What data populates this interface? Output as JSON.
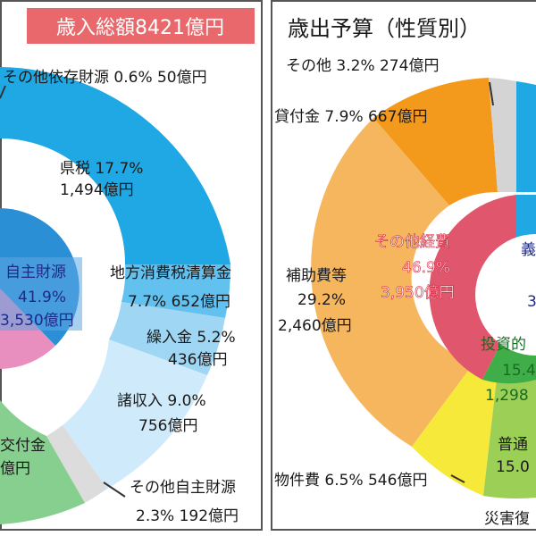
{
  "chart_data": [
    {
      "type": "pie",
      "title": "歳入総額8421億円",
      "outer_ring": [
        {
          "label": "その他依存財源",
          "percent": 0.6,
          "amount": "50億円",
          "color": "#f3e6ef"
        },
        {
          "label": "県税",
          "percent": 17.7,
          "amount": "1,494億円",
          "color": "#1fa8e3"
        },
        {
          "label": "地方消費税清算金",
          "percent": 7.7,
          "amount": "652億円",
          "color": "#62c1ee"
        },
        {
          "label": "繰入金",
          "percent": 5.2,
          "amount": "436億円",
          "color": "#9ed6f4"
        },
        {
          "label": "諸収入",
          "percent": 9.0,
          "amount": "756億円",
          "color": "#cfeafa"
        },
        {
          "label": "その他自主財源",
          "percent": 2.3,
          "amount": "192億円",
          "color": "#dcdcdc"
        },
        {
          "label": "交付金",
          "percent": null,
          "amount": "億円",
          "color": "#86cf8f"
        }
      ],
      "inner_ring": [
        {
          "label": "自主財源",
          "percent": 41.9,
          "amount": "3,530億円",
          "color": "#2b8fd6"
        },
        {
          "label": "",
          "percent": null,
          "amount": "",
          "color": "#e98fbf"
        }
      ],
      "text": {
        "outer_top": "その他依存財源 0.6% 50億円",
        "kenzei_1": "県税 17.7%",
        "kenzei_2": "1,494億円",
        "chiho_1": "地方消費税清算金",
        "chiho_2": "7.7% 652億円",
        "kuri_1": "繰入金 5.2%",
        "kuri_2": "436億円",
        "sho_1": "諸収入 9.0%",
        "sho_2": "756億円",
        "other_1": "その他自主財源",
        "other_2": "2.3% 192億円",
        "kofu_1": "交付金",
        "kofu_2": "億円",
        "jishu_1": "自主財源",
        "jishu_2": "41.9%",
        "jishu_3": "3,530億円"
      }
    },
    {
      "type": "pie",
      "title": "歳出予算（性質別）",
      "outer_ring": [
        {
          "label": "その他",
          "percent": 3.2,
          "amount": "274億円",
          "color": "#d4d4d4"
        },
        {
          "label": "貸付金",
          "percent": 7.9,
          "amount": "667億円",
          "color": "#f39a1d"
        },
        {
          "label": "補助費等",
          "percent": 29.2,
          "amount": "2,460億円",
          "color": "#f6b65e"
        },
        {
          "label": "物件費",
          "percent": 6.5,
          "amount": "546億円",
          "color": "#f7e93a"
        },
        {
          "label": "普通",
          "percent": 15.0,
          "amount": "",
          "color": "#9bcf55"
        }
      ],
      "inner_ring": [
        {
          "label": "その他経費",
          "percent": 46.9,
          "amount": "3,950億円",
          "color": "#e0566c"
        },
        {
          "label": "投資的",
          "percent": 15.4,
          "amount": "1,298",
          "color": "#3fae49"
        }
      ],
      "text": {
        "sonota": "その他 3.2% 274億円",
        "kashi": "貸付金 7.9% 667億円",
        "hojo_1": "補助費等",
        "hojo_2": "29.2%",
        "hojo_3": "2,460億円",
        "bukken": "物件費 6.5% 546億円",
        "futsu_1": "普通",
        "futsu_2": "15.0",
        "saigai": "災害復",
        "keihi_1": "その他経費",
        "keihi_2": "46.9%",
        "keihi_3": "3,950億円",
        "toshi_1": "投資的",
        "toshi_2": "15.4",
        "toshi_3": "1,298",
        "gi": "義",
        "three": "3"
      }
    }
  ]
}
